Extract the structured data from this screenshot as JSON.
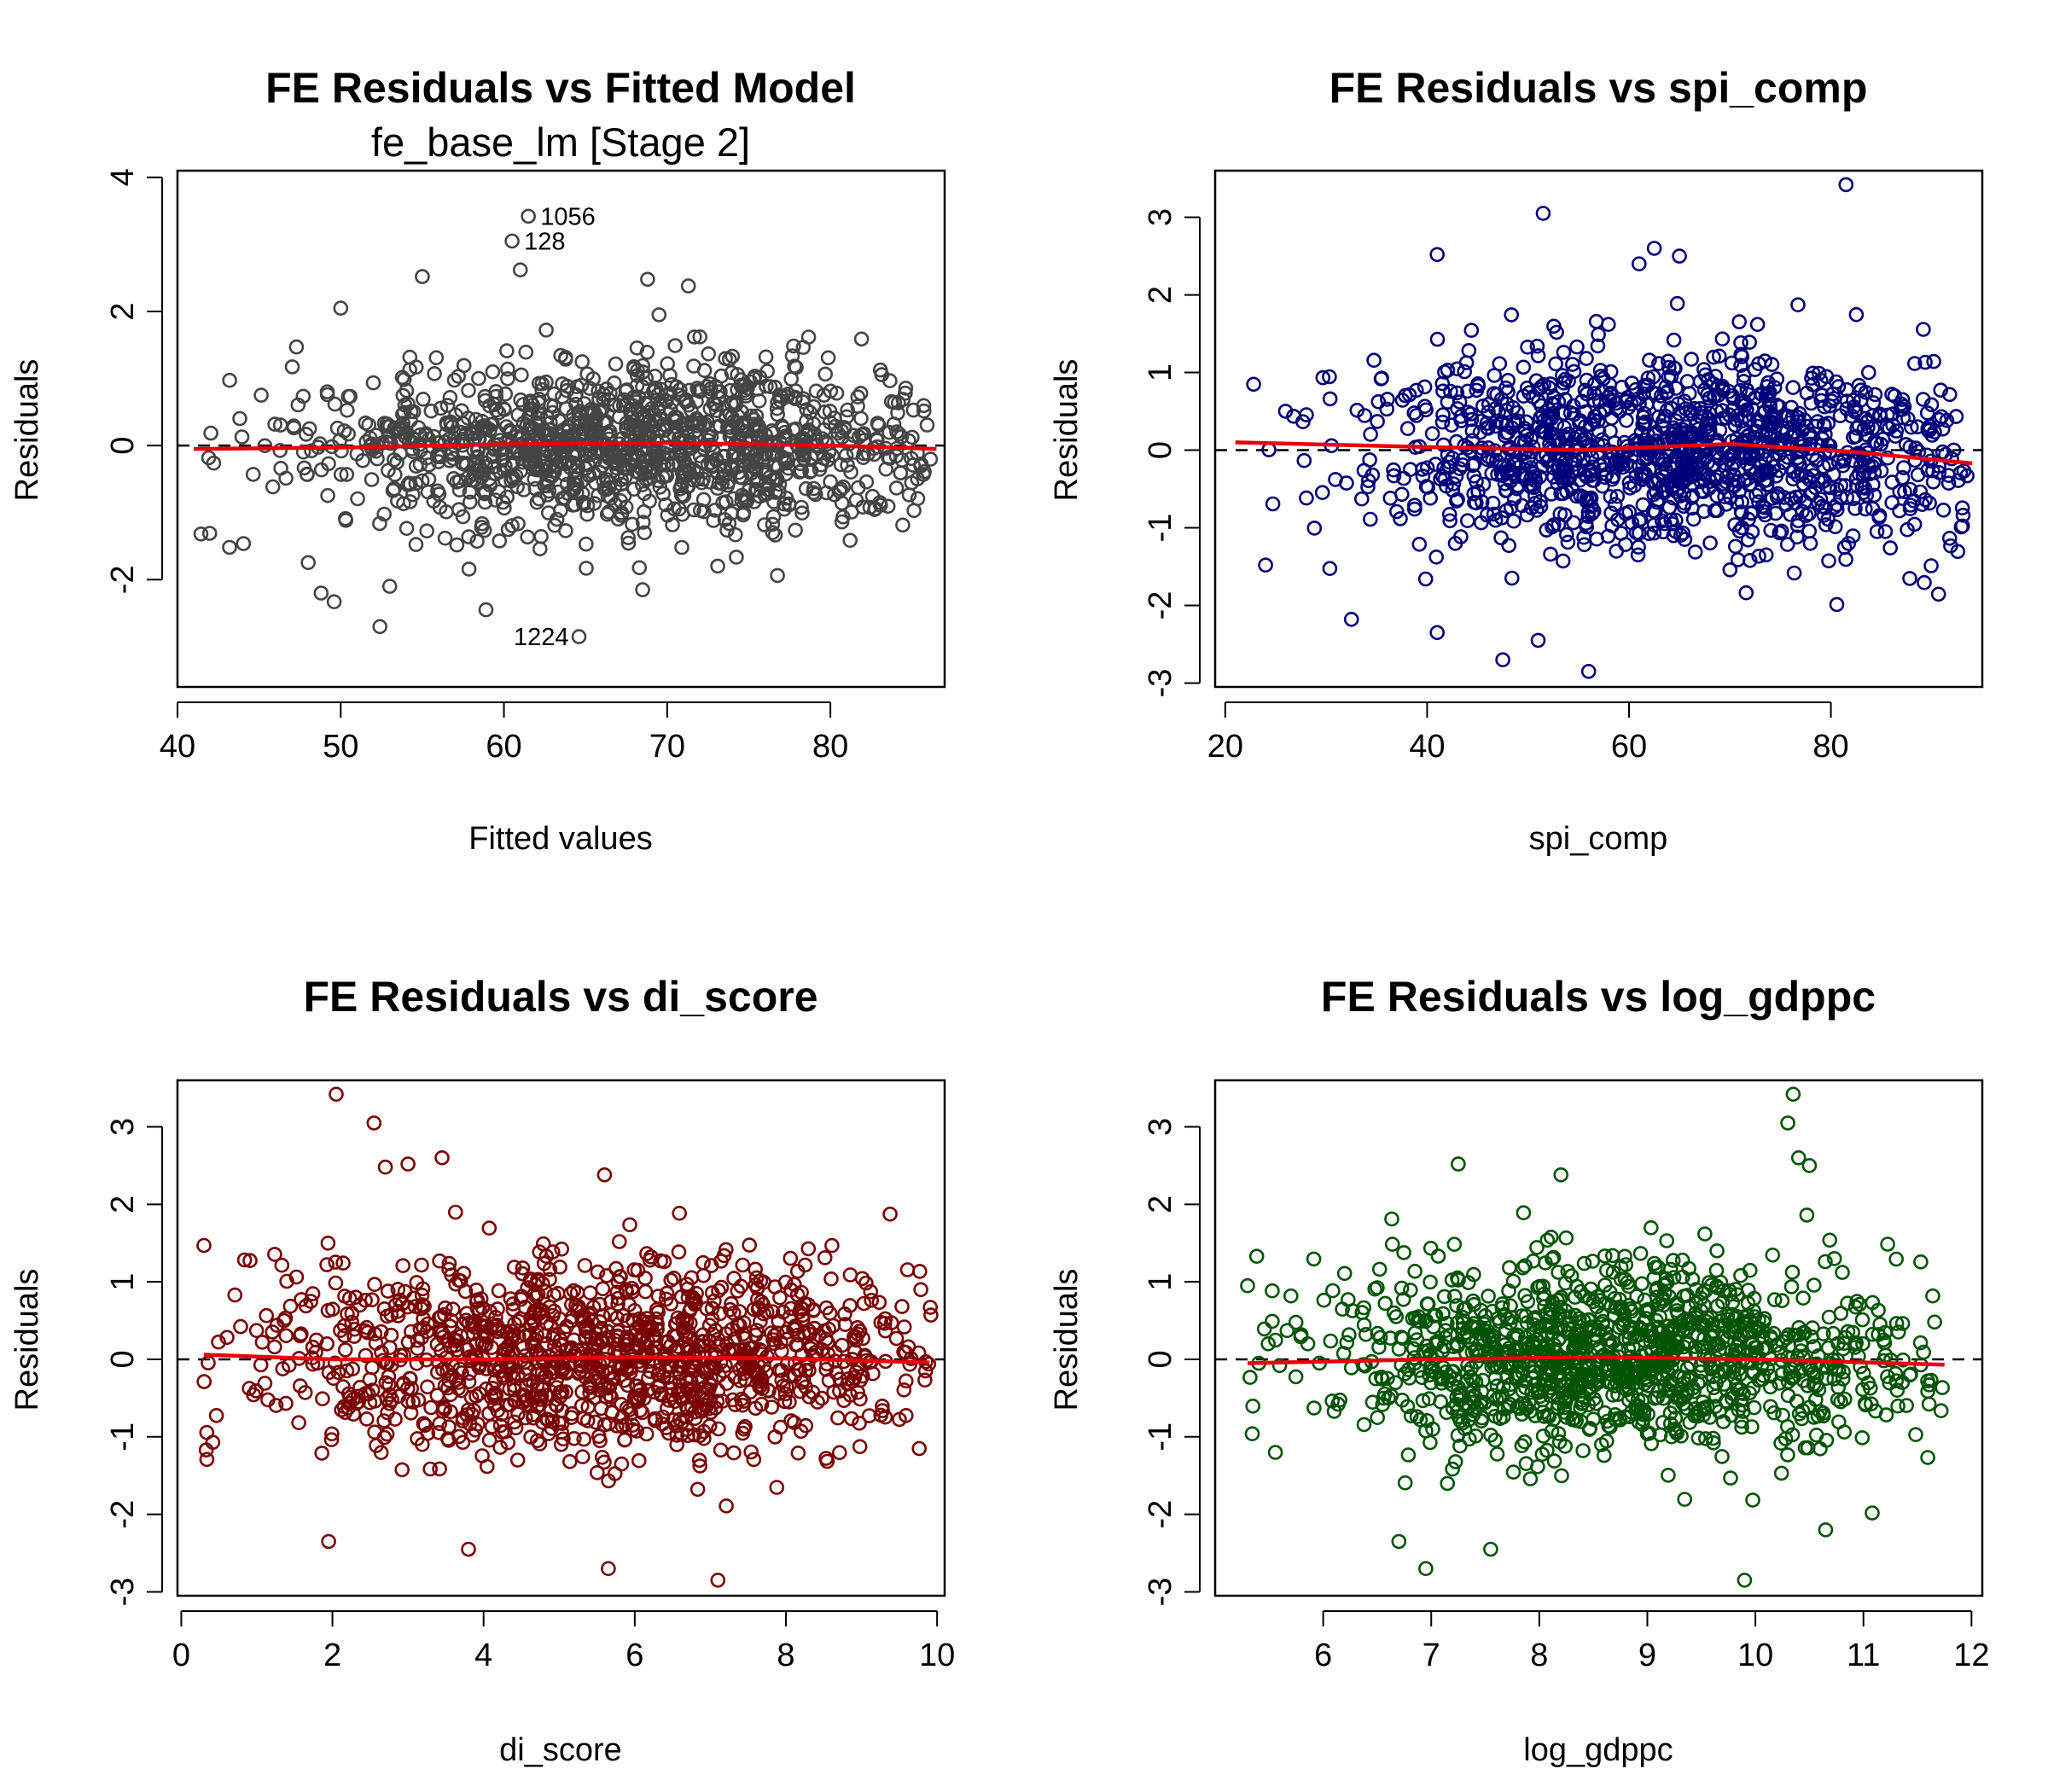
{
  "chart_data": [
    {
      "type": "scatter",
      "title": "FE Residuals vs Fitted Model",
      "subtitle": "fe_base_lm [Stage 2]",
      "xlabel": "Fitted values",
      "ylabel": "Residuals",
      "xlim": [
        40,
        87
      ],
      "ylim": [
        -3.6,
        4.1
      ],
      "xticks": [
        40,
        50,
        60,
        70,
        80
      ],
      "yticks": [
        -2,
        0,
        2,
        4
      ],
      "point_color": "#444444",
      "smooth_color": "#e8000b",
      "reference_line": 0,
      "n_points": 1270,
      "x_center": 68,
      "x_spread": 10,
      "x_range": [
        41,
        86.5
      ],
      "residual_sd": 0.62,
      "smooth": [
        [
          41,
          -0.05
        ],
        [
          50,
          -0.03
        ],
        [
          60,
          0.02
        ],
        [
          70,
          0.04
        ],
        [
          80,
          0.0
        ],
        [
          86.5,
          -0.05
        ]
      ],
      "outliers": [
        {
          "x": 61.5,
          "y": 3.42,
          "label": "1056"
        },
        {
          "x": 60.5,
          "y": 3.05,
          "label": "128"
        },
        {
          "x": 64.6,
          "y": -2.85,
          "label": "1224"
        },
        {
          "x": 61.0,
          "y": 2.62
        },
        {
          "x": 55.0,
          "y": 2.52
        },
        {
          "x": 68.8,
          "y": 2.48
        },
        {
          "x": 71.3,
          "y": 2.38
        },
        {
          "x": 50.0,
          "y": 2.05
        },
        {
          "x": 69.5,
          "y": 1.95
        },
        {
          "x": 48.8,
          "y": -2.2
        },
        {
          "x": 52.4,
          "y": -2.7
        },
        {
          "x": 58.9,
          "y": -2.45
        },
        {
          "x": 49.6,
          "y": -2.33
        },
        {
          "x": 53.0,
          "y": -2.1
        },
        {
          "x": 68.5,
          "y": -2.15
        }
      ]
    },
    {
      "type": "scatter",
      "title": "FE Residuals vs spi_comp",
      "xlabel": "spi_comp",
      "ylabel": "Residuals",
      "xlim": [
        19,
        95
      ],
      "ylim": [
        -3.05,
        3.6
      ],
      "xticks": [
        20,
        40,
        60,
        80
      ],
      "yticks": [
        -3,
        -2,
        -1,
        0,
        1,
        2,
        3
      ],
      "point_color": "#00007a",
      "smooth_color": "#e8000b",
      "reference_line": 0,
      "n_points": 1270,
      "x_center": 65,
      "x_spread": 16,
      "x_range": [
        21,
        94
      ],
      "residual_sd": 0.62,
      "smooth": [
        [
          21,
          0.1
        ],
        [
          40,
          0.04
        ],
        [
          55,
          0.0
        ],
        [
          70,
          0.08
        ],
        [
          82,
          -0.02
        ],
        [
          94,
          -0.17
        ]
      ],
      "outliers": [
        {
          "x": 81.5,
          "y": 3.42
        },
        {
          "x": 51.5,
          "y": 3.05
        },
        {
          "x": 62.5,
          "y": 2.6
        },
        {
          "x": 61.0,
          "y": 2.4
        },
        {
          "x": 65.0,
          "y": 2.5
        },
        {
          "x": 41.0,
          "y": 2.52
        },
        {
          "x": 56.0,
          "y": -2.85
        },
        {
          "x": 47.5,
          "y": -2.7
        },
        {
          "x": 51.0,
          "y": -2.45
        },
        {
          "x": 41.0,
          "y": -2.35
        },
        {
          "x": 32.5,
          "y": -2.18
        },
        {
          "x": 24.0,
          "y": -1.48
        }
      ]
    },
    {
      "type": "scatter",
      "title": "FE Residuals vs di_score",
      "xlabel": "di_score",
      "ylabel": "Residuals",
      "xlim": [
        -0.05,
        10.1
      ],
      "ylim": [
        -3.05,
        3.6
      ],
      "xticks": [
        0,
        2,
        4,
        6,
        8,
        10
      ],
      "yticks": [
        -3,
        -2,
        -1,
        0,
        1,
        2,
        3
      ],
      "point_color": "#7a0000",
      "smooth_color": "#e8000b",
      "reference_line": 0,
      "n_points": 1270,
      "x_center": 5.6,
      "x_spread": 2.4,
      "x_range": [
        0.25,
        9.95
      ],
      "residual_sd": 0.62,
      "smooth": [
        [
          0.3,
          0.06
        ],
        [
          2,
          0.0
        ],
        [
          4,
          0.0
        ],
        [
          6,
          0.03
        ],
        [
          8,
          0.01
        ],
        [
          9.9,
          -0.04
        ]
      ],
      "outliers": [
        {
          "x": 2.05,
          "y": 3.42
        },
        {
          "x": 2.55,
          "y": 3.05
        },
        {
          "x": 3.45,
          "y": 2.6
        },
        {
          "x": 3.0,
          "y": 2.52
        },
        {
          "x": 2.7,
          "y": 2.48
        },
        {
          "x": 5.6,
          "y": 2.38
        },
        {
          "x": 7.1,
          "y": -2.85
        },
        {
          "x": 5.65,
          "y": -2.7
        },
        {
          "x": 3.8,
          "y": -2.45
        },
        {
          "x": 1.95,
          "y": -2.35
        },
        {
          "x": 0.3,
          "y": 1.47
        },
        {
          "x": 0.33,
          "y": -1.17
        }
      ]
    },
    {
      "type": "scatter",
      "title": "FE Residuals vs log_gdppc",
      "xlabel": "log_gdppc",
      "ylabel": "Residuals",
      "xlim": [
        5.0,
        12.1
      ],
      "ylim": [
        -3.05,
        3.6
      ],
      "xticks": [
        6,
        7,
        8,
        9,
        10,
        11,
        12
      ],
      "yticks": [
        -3,
        -2,
        -1,
        0,
        1,
        2,
        3
      ],
      "point_color": "#005400",
      "smooth_color": "#e8000b",
      "reference_line": 0,
      "n_points": 1270,
      "x_center": 8.7,
      "x_spread": 1.4,
      "x_range": [
        5.3,
        11.75
      ],
      "residual_sd": 0.62,
      "smooth": [
        [
          5.3,
          -0.05
        ],
        [
          7,
          0.0
        ],
        [
          8.5,
          0.03
        ],
        [
          10,
          0.0
        ],
        [
          11.75,
          -0.07
        ]
      ],
      "outliers": [
        {
          "x": 10.35,
          "y": 3.42
        },
        {
          "x": 10.3,
          "y": 3.05
        },
        {
          "x": 10.4,
          "y": 2.6
        },
        {
          "x": 10.5,
          "y": 2.5
        },
        {
          "x": 7.25,
          "y": 2.52
        },
        {
          "x": 8.2,
          "y": 2.38
        },
        {
          "x": 9.9,
          "y": -2.85
        },
        {
          "x": 6.95,
          "y": -2.7
        },
        {
          "x": 7.55,
          "y": -2.45
        },
        {
          "x": 6.7,
          "y": -2.35
        },
        {
          "x": 10.65,
          "y": -2.2
        },
        {
          "x": 5.3,
          "y": 0.95
        }
      ]
    }
  ]
}
